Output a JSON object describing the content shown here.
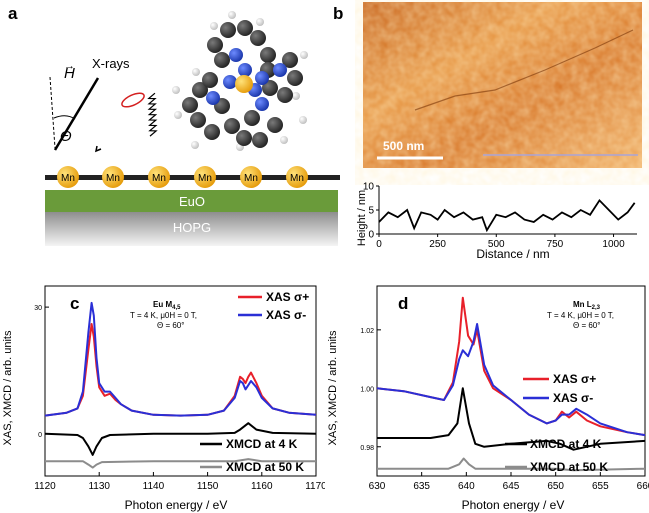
{
  "panels": {
    "a": {
      "letter": "a",
      "field_label": "H",
      "angle_label": "Θ",
      "xray_label": "X-rays",
      "molecule_label": "Mn",
      "layer_top": "EuO",
      "layer_bottom": "HOPG",
      "colors": {
        "euo": "#6a9b3a",
        "hopg_top": "#8e8e8e",
        "hopg_bottom": "#f2f2f2",
        "atom": "#f5b21c"
      }
    },
    "b": {
      "letter": "b",
      "scalebar_label": "500 nm",
      "profile": {
        "ylabel": "Height / nm",
        "xlabel": "Distance / nm",
        "xticks": [
          "0",
          "250",
          "500",
          "750",
          "1000"
        ],
        "yticks": [
          "0",
          "5",
          "10"
        ]
      }
    },
    "c": {
      "letter": "c",
      "edge_label": "Eu M",
      "edge_sub": "4,5",
      "conditions": [
        "T = 4 K, μ0H = 0 T,",
        "Θ = 60°"
      ],
      "legend": [
        {
          "label": "XAS σ+",
          "color": "#e8202a"
        },
        {
          "label": "XAS σ-",
          "color": "#2a2fd6"
        }
      ],
      "xmcd_labels": [
        {
          "label": "XMCD at 4 K",
          "color": "#000000"
        },
        {
          "label": "XMCD at 50 K",
          "color": "#8c8c8c"
        }
      ],
      "ylabel": "XAS, XMCD / arb. units",
      "xlabel": "Photon energy / eV",
      "xticks": [
        "1120",
        "1130",
        "1140",
        "1150",
        "1160",
        "1170"
      ],
      "yticks": [
        "0",
        "30"
      ]
    },
    "d": {
      "letter": "d",
      "edge_label": "Mn L",
      "edge_sub": "2,3",
      "conditions": [
        "T = 4 K, μ0H = 0 T,",
        "Θ = 60°"
      ],
      "legend": [
        {
          "label": "XAS σ+",
          "color": "#e8202a"
        },
        {
          "label": "XAS σ-",
          "color": "#2a2fd6"
        }
      ],
      "xmcd_labels": [
        {
          "label": "XMCD at 4 K",
          "color": "#000000"
        },
        {
          "label": "XMCD at 50 K",
          "color": "#8c8c8c"
        }
      ],
      "ylabel": "XAS, XMCD / arb. units",
      "xlabel": "Photon energy / eV",
      "xticks": [
        "630",
        "635",
        "640",
        "645",
        "650",
        "655",
        "660"
      ],
      "yticks": [
        "0.98",
        "1.00",
        "1.02"
      ]
    }
  },
  "chart_data": [
    {
      "type": "line",
      "panel": "b",
      "xlabel": "Distance / nm",
      "ylabel": "Height / nm",
      "xlim": [
        0,
        1100
      ],
      "ylim": [
        0,
        10
      ],
      "series": [
        {
          "x": [
            0,
            40,
            80,
            120,
            150,
            180,
            220,
            250,
            280,
            320,
            360,
            400,
            440,
            460,
            500,
            540,
            580,
            620,
            660,
            700,
            740,
            780,
            820,
            860,
            900,
            940,
            980,
            1020,
            1060,
            1090
          ],
          "values": [
            2.5,
            4.5,
            3.5,
            5.0,
            1.2,
            4.5,
            4.0,
            3.0,
            5.0,
            3.5,
            4.5,
            3.0,
            3.5,
            0.8,
            4.0,
            3.5,
            4.5,
            3.0,
            2.5,
            4.0,
            3.0,
            4.5,
            3.5,
            5.0,
            4.0,
            7.0,
            5.0,
            3.0,
            4.5,
            6.5
          ]
        }
      ]
    },
    {
      "type": "line",
      "panel": "c",
      "xlabel": "Photon energy / eV",
      "ylabel": "XAS, XMCD / arb. units",
      "xlim": [
        1120,
        1170
      ],
      "ylim": [
        -10,
        35
      ],
      "series": [
        {
          "name": "XAS σ+",
          "color": "#e8202a",
          "x": [
            1120,
            1124,
            1126,
            1127,
            1128,
            1128.6,
            1129,
            1129.5,
            1130,
            1131,
            1132,
            1133,
            1134,
            1136,
            1140,
            1145,
            1150,
            1153,
            1155,
            1156,
            1156.5,
            1157,
            1157.5,
            1158,
            1159,
            1160,
            1162,
            1165,
            1170
          ],
          "values": [
            4.3,
            5,
            6,
            9,
            20,
            26,
            23,
            16,
            11,
            9,
            9.5,
            8,
            7,
            5.5,
            4.5,
            4.3,
            4.5,
            5.5,
            9,
            13.5,
            13,
            12,
            13.5,
            14.5,
            12,
            9,
            6,
            5,
            4.5
          ]
        },
        {
          "name": "XAS σ-",
          "color": "#2a2fd6",
          "x": [
            1120,
            1124,
            1126,
            1127,
            1128,
            1128.6,
            1129,
            1129.5,
            1130,
            1131,
            1132,
            1133,
            1134,
            1136,
            1140,
            1145,
            1150,
            1153,
            1155,
            1156,
            1156.5,
            1157,
            1157.5,
            1158,
            1159,
            1160,
            1162,
            1165,
            1170
          ],
          "values": [
            4.3,
            5,
            6,
            10,
            24,
            31,
            28,
            18,
            12,
            10,
            10,
            8.5,
            7,
            5.5,
            4.5,
            4.3,
            4.5,
            5.5,
            8.5,
            12.5,
            12,
            10.5,
            11.5,
            12.5,
            11,
            8.5,
            6,
            5,
            4.5
          ]
        },
        {
          "name": "XMCD at 4 K",
          "color": "#000000",
          "x": [
            1120,
            1126,
            1127,
            1128,
            1128.8,
            1129.5,
            1130.5,
            1132,
            1140,
            1150,
            1155,
            1156,
            1157.5,
            1159,
            1162,
            1170
          ],
          "values": [
            0,
            -0.3,
            -1,
            -3,
            -5,
            -3,
            -1,
            -0.3,
            0,
            0,
            0.2,
            1.0,
            2.5,
            1.0,
            0.2,
            0
          ]
        },
        {
          "name": "XMCD at 50 K",
          "color": "#8c8c8c",
          "x": [
            1120,
            1127,
            1128,
            1128.8,
            1129.5,
            1130.5,
            1140,
            1155,
            1157.5,
            1160,
            1170
          ],
          "values": [
            -6.5,
            -6.5,
            -7.3,
            -8,
            -7.3,
            -6.7,
            -6.5,
            -6.5,
            -6,
            -6.5,
            -6.5
          ]
        }
      ]
    },
    {
      "type": "line",
      "panel": "d",
      "xlabel": "Photon energy / eV",
      "ylabel": "XAS, XMCD / arb. units",
      "xlim": [
        630,
        660
      ],
      "ylim": [
        0.97,
        1.035
      ],
      "series": [
        {
          "name": "XAS σ+",
          "color": "#e8202a",
          "x": [
            630,
            633,
            636,
            637.5,
            638.5,
            639.2,
            639.6,
            640.2,
            640.8,
            641.2,
            642,
            643,
            645,
            647,
            649,
            650,
            650.7,
            651.5,
            652.3,
            653.5,
            655,
            658,
            660
          ],
          "values": [
            1.0,
            0.999,
            0.997,
            0.996,
            1.002,
            1.016,
            1.031,
            1.018,
            1.015,
            1.02,
            1.006,
            1.0,
            0.996,
            0.991,
            0.988,
            0.989,
            0.992,
            0.99,
            0.992,
            0.989,
            0.987,
            0.985,
            0.984
          ]
        },
        {
          "name": "XAS σ-",
          "color": "#2a2fd6",
          "x": [
            630,
            633,
            636,
            637.5,
            638.5,
            639.2,
            639.6,
            640.2,
            640.8,
            641.2,
            642,
            643,
            645,
            647,
            649,
            650,
            650.7,
            651.5,
            652.3,
            653.5,
            655,
            658,
            660
          ],
          "values": [
            1.0,
            0.999,
            0.997,
            0.996,
            1.001,
            1.01,
            1.013,
            1.011,
            1.016,
            1.022,
            1.008,
            1.001,
            0.996,
            0.991,
            0.988,
            0.989,
            0.991,
            0.991,
            0.993,
            0.991,
            0.988,
            0.985,
            0.984
          ]
        },
        {
          "name": "XMCD at 4 K",
          "color": "#000000",
          "x": [
            630,
            636,
            638,
            639,
            639.6,
            640.3,
            641,
            642,
            645,
            649,
            650.5,
            652,
            655,
            660
          ],
          "values": [
            0.983,
            0.983,
            0.984,
            0.988,
            1.0,
            0.988,
            0.981,
            0.98,
            0.981,
            0.982,
            0.981,
            0.979,
            0.981,
            0.982
          ]
        },
        {
          "name": "XMCD at 50 K",
          "color": "#8c8c8c",
          "x": [
            630,
            638,
            639.2,
            639.7,
            640.3,
            641,
            645,
            650,
            652,
            660
          ],
          "values": [
            0.9725,
            0.9725,
            0.974,
            0.976,
            0.974,
            0.9725,
            0.9725,
            0.9725,
            0.972,
            0.9725
          ]
        }
      ]
    }
  ]
}
